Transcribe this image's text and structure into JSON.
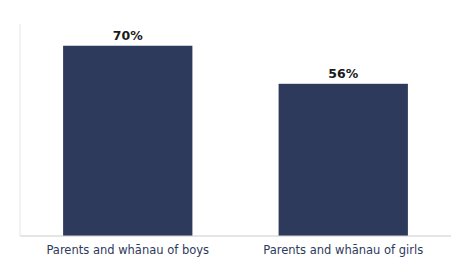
{
  "chart_data": {
    "type": "bar",
    "categories": [
      "Parents and whānau of boys",
      "Parents and whānau of girls"
    ],
    "values": [
      70,
      56
    ],
    "value_labels": [
      "70%",
      "56%"
    ],
    "data_labels": true,
    "color": "#2E3A5C",
    "ylim": [
      0,
      78
    ],
    "tick_labels": "x",
    "grid": false
  }
}
